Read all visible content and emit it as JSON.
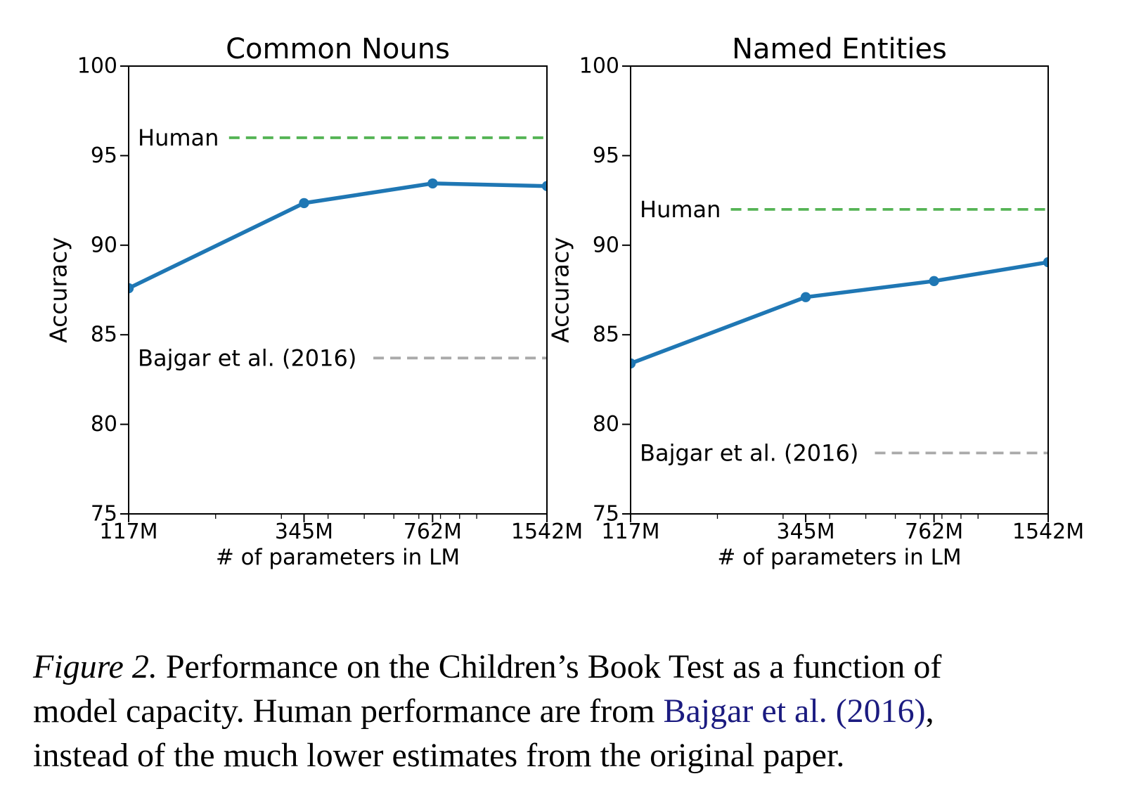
{
  "chart_data": [
    {
      "type": "line",
      "title": "Common Nouns",
      "xlabel": "# of parameters in LM",
      "ylabel": "Accuracy",
      "x_scale": "log",
      "x_tick_labels": [
        "117M",
        "345M",
        "762M",
        "1542M"
      ],
      "x_values_millions": [
        117,
        345,
        762,
        1542
      ],
      "ylim": [
        75,
        100
      ],
      "yticks": [
        75,
        80,
        85,
        90,
        95,
        100
      ],
      "grid": false,
      "legend": "none",
      "series": [
        {
          "color": "#1f77b4",
          "marker": "circle",
          "values": [
            87.6,
            92.35,
            93.45,
            93.3
          ]
        }
      ],
      "reference_lines": [
        {
          "label": "Human",
          "value": 96.0,
          "color": "#55b455",
          "style": "dashed"
        },
        {
          "label": "Bajgar et al. (2016)",
          "value": 83.7,
          "color": "#aaaaaa",
          "style": "dashed"
        }
      ]
    },
    {
      "type": "line",
      "title": "Named Entities",
      "xlabel": "# of parameters in LM",
      "ylabel": "Accuracy",
      "x_scale": "log",
      "x_tick_labels": [
        "117M",
        "345M",
        "762M",
        "1542M"
      ],
      "x_values_millions": [
        117,
        345,
        762,
        1542
      ],
      "ylim": [
        75,
        100
      ],
      "yticks": [
        75,
        80,
        85,
        90,
        95,
        100
      ],
      "grid": false,
      "legend": "none",
      "series": [
        {
          "color": "#1f77b4",
          "marker": "circle",
          "values": [
            83.4,
            87.1,
            88.0,
            89.05
          ]
        }
      ],
      "reference_lines": [
        {
          "label": "Human",
          "value": 92.0,
          "color": "#55b455",
          "style": "dashed"
        },
        {
          "label": "Bajgar et al. (2016)",
          "value": 78.4,
          "color": "#aaaaaa",
          "style": "dashed"
        }
      ]
    }
  ],
  "caption": {
    "figure_label": "Figure 2.",
    "line1_rest": " Performance on the Children’s Book Test as a function of",
    "line2_pre": "model capacity. Human performance are from ",
    "line2_citation": "Bajgar et al. (2016)",
    "line2_post": ",",
    "line3": "instead of the much lower estimates from the original paper."
  },
  "colors": {
    "series_blue": "#1f77b4",
    "human_green": "#55b455",
    "baseline_gray": "#aaaaaa",
    "citation_navy": "#1b1b80",
    "axis_black": "#000000"
  }
}
